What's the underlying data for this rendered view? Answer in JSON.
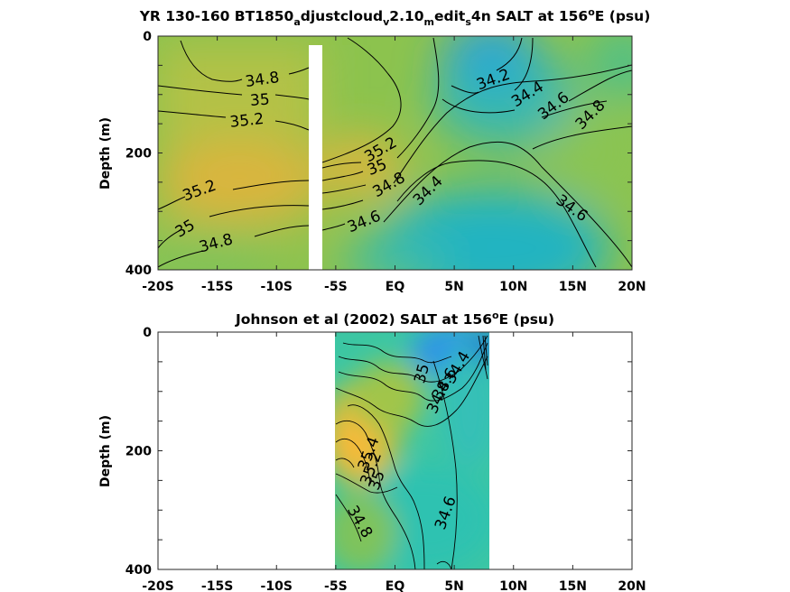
{
  "chart_data": [
    {
      "type": "contour",
      "title_parts": [
        "YR 130-160 BT1850",
        "a",
        "djustcloud",
        "v",
        "2.10",
        "m",
        "edit",
        "s",
        "4n SALT at 156",
        "o",
        "E (psu)"
      ],
      "ylabel": "Depth (m)",
      "xticks": [
        "-20S",
        "-15S",
        "-10S",
        "-5S",
        "EQ",
        "5N",
        "10N",
        "15N",
        "20N"
      ],
      "xtick_values": [
        -20,
        -15,
        -10,
        -5,
        0,
        5,
        10,
        15,
        20
      ],
      "yticks": [
        "0",
        "200",
        "400"
      ],
      "ytick_values": [
        0,
        200,
        400
      ],
      "xlim": [
        -20,
        20
      ],
      "ylim": [
        400,
        0
      ],
      "y_reversed": true,
      "data_gap_x": [
        -7.5,
        -6.5
      ],
      "colormap": "parula",
      "contour_levels": [
        34.2,
        34.4,
        34.6,
        34.8,
        35,
        35.2
      ],
      "contour_labels": [
        {
          "text": "34.8",
          "x": -11.2,
          "y": 75
        },
        {
          "text": "35",
          "x": -11.4,
          "y": 110
        },
        {
          "text": "35.2",
          "x": -12.5,
          "y": 145
        },
        {
          "text": "35.2",
          "x": -1.2,
          "y": 195
        },
        {
          "text": "35",
          "x": -1.5,
          "y": 225
        },
        {
          "text": "34.8",
          "x": -0.5,
          "y": 255
        },
        {
          "text": "34.4",
          "x": 2.8,
          "y": 265
        },
        {
          "text": "34.6",
          "x": -2.6,
          "y": 318
        },
        {
          "text": "35.2",
          "x": -16.5,
          "y": 265
        },
        {
          "text": "35",
          "x": -17.7,
          "y": 330
        },
        {
          "text": "34.8",
          "x": -15.1,
          "y": 355
        },
        {
          "text": "34.2",
          "x": 8.3,
          "y": 75
        },
        {
          "text": "34.4",
          "x": 11.2,
          "y": 100
        },
        {
          "text": "34.6",
          "x": 13.4,
          "y": 120
        },
        {
          "text": "34.8",
          "x": 16.5,
          "y": 135
        },
        {
          "text": "34.6",
          "x": 14.9,
          "y": 295
        }
      ]
    },
    {
      "type": "contour",
      "title_parts": [
        "Johnson et al (2002) SALT at 156",
        "o",
        "E (psu)"
      ],
      "ylabel": "Depth (m)",
      "xticks": [
        "-20S",
        "-15S",
        "-10S",
        "-5S",
        "EQ",
        "5N",
        "10N",
        "15N",
        "20N"
      ],
      "xtick_values": [
        -20,
        -15,
        -10,
        -5,
        0,
        5,
        10,
        15,
        20
      ],
      "yticks": [
        "0",
        "200",
        "400"
      ],
      "ytick_values": [
        0,
        200,
        400
      ],
      "xlim": [
        -20,
        20
      ],
      "ylim": [
        400,
        0
      ],
      "y_reversed": true,
      "data_x_range": [
        -5,
        8
      ],
      "colormap": "parula",
      "contour_levels": [
        34.4,
        34.6,
        34.8,
        35,
        35.2,
        35.4
      ],
      "contour_labels": [
        {
          "text": "34.4",
          "x": 5.3,
          "y": 60
        },
        {
          "text": "34.6",
          "x": 4.2,
          "y": 88
        },
        {
          "text": "34.8",
          "x": 3.7,
          "y": 110
        },
        {
          "text": "35",
          "x": 2.3,
          "y": 70
        },
        {
          "text": "35.4",
          "x": -2.2,
          "y": 205
        },
        {
          "text": "35.2",
          "x": -2.0,
          "y": 230
        },
        {
          "text": "35",
          "x": -1.5,
          "y": 250
        },
        {
          "text": "34.8",
          "x": -3.0,
          "y": 320
        },
        {
          "text": "34.6",
          "x": 4.3,
          "y": 305
        }
      ]
    }
  ]
}
